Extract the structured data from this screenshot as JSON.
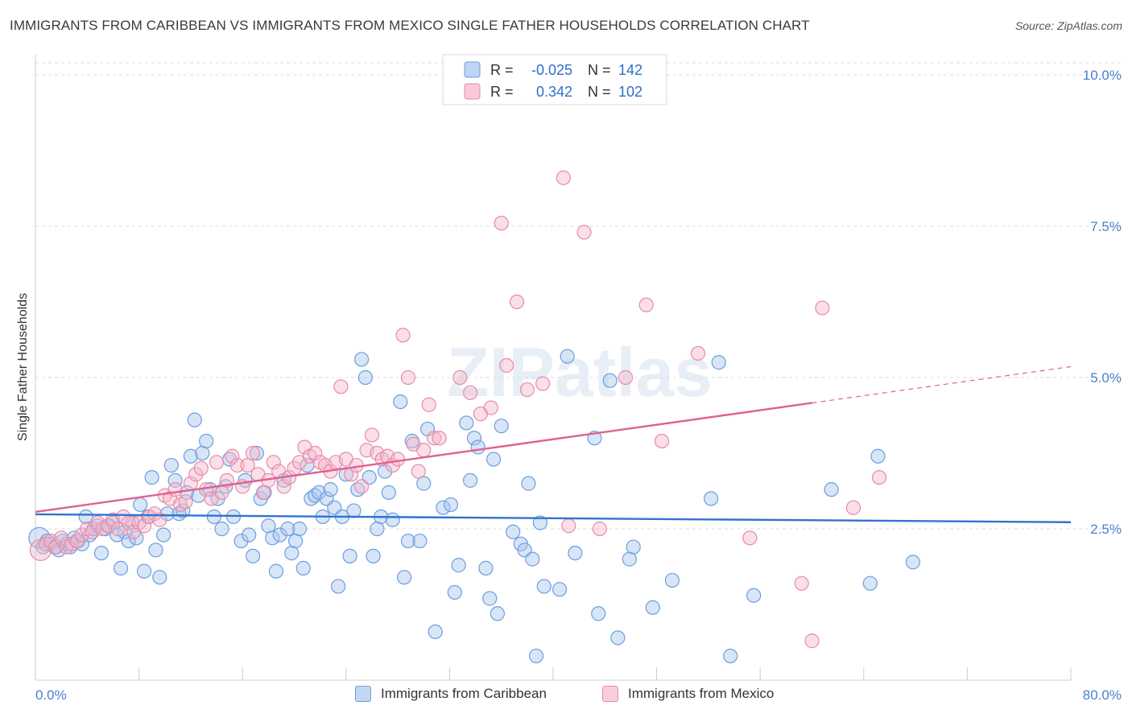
{
  "title": "IMMIGRANTS FROM CARIBBEAN VS IMMIGRANTS FROM MEXICO SINGLE FATHER HOUSEHOLDS CORRELATION CHART",
  "source": "Source: ZipAtlas.com",
  "watermark": "ZIPatlas",
  "colors": {
    "caribbean_fill": "#a9c6ee",
    "caribbean_stroke": "#6b9ee0",
    "caribbean_line": "#2f74d0",
    "mexico_fill": "#f5b8cb",
    "mexico_stroke": "#e88aa8",
    "mexico_line": "#e0628d",
    "tick_label": "#4a7fd0",
    "grid": "#dddddd"
  },
  "legend": {
    "rows": [
      {
        "r_label": "R =",
        "r_value": "-0.025",
        "n_label": "N =",
        "n_value": "142"
      },
      {
        "r_label": "R =",
        "r_value": "0.342",
        "n_label": "N =",
        "n_value": "102"
      }
    ]
  },
  "chart_data": {
    "type": "scatter",
    "title": "IMMIGRANTS FROM CARIBBEAN VS IMMIGRANTS FROM MEXICO SINGLE FATHER HOUSEHOLDS CORRELATION CHART",
    "xlabel": "",
    "ylabel": "Single Father Households",
    "xlim": [
      0,
      80
    ],
    "ylim": [
      0,
      10.2
    ],
    "x_tick_labels": [
      "0.0%",
      "80.0%"
    ],
    "y_ticks": [
      2.5,
      5.0,
      7.5,
      10.0
    ],
    "y_tick_labels": [
      "2.5%",
      "5.0%",
      "7.5%",
      "10.0%"
    ],
    "grid": true,
    "legend_position": "top-center",
    "series": [
      {
        "name": "Immigrants from Caribbean",
        "r": -0.025,
        "n": 142,
        "trend": {
          "x": [
            0,
            80
          ],
          "y": [
            2.74,
            2.61
          ]
        },
        "points": [
          [
            0.3,
            2.35
          ],
          [
            0.6,
            2.2
          ],
          [
            0.9,
            2.3
          ],
          [
            1.2,
            2.25
          ],
          [
            1.5,
            2.2
          ],
          [
            1.8,
            2.15
          ],
          [
            2.1,
            2.3
          ],
          [
            2.4,
            2.25
          ],
          [
            2.7,
            2.2
          ],
          [
            3.0,
            2.35
          ],
          [
            3.3,
            2.3
          ],
          [
            3.6,
            2.25
          ],
          [
            3.9,
            2.7
          ],
          [
            4.2,
            2.4
          ],
          [
            4.5,
            2.5
          ],
          [
            4.8,
            2.55
          ],
          [
            5.1,
            2.1
          ],
          [
            5.4,
            2.5
          ],
          [
            5.7,
            2.55
          ],
          [
            6.0,
            2.6
          ],
          [
            6.3,
            2.4
          ],
          [
            6.6,
            1.85
          ],
          [
            6.9,
            2.45
          ],
          [
            7.2,
            2.3
          ],
          [
            7.5,
            2.6
          ],
          [
            7.8,
            2.35
          ],
          [
            8.1,
            2.9
          ],
          [
            8.4,
            1.8
          ],
          [
            8.7,
            2.7
          ],
          [
            9.0,
            3.35
          ],
          [
            9.3,
            2.15
          ],
          [
            9.6,
            1.7
          ],
          [
            9.9,
            2.4
          ],
          [
            10.2,
            2.75
          ],
          [
            10.5,
            3.55
          ],
          [
            10.8,
            3.3
          ],
          [
            11.1,
            2.75
          ],
          [
            11.4,
            2.8
          ],
          [
            11.7,
            3.1
          ],
          [
            12.0,
            3.7
          ],
          [
            12.3,
            4.3
          ],
          [
            12.6,
            3.05
          ],
          [
            12.9,
            3.75
          ],
          [
            13.2,
            3.95
          ],
          [
            13.5,
            3.15
          ],
          [
            13.8,
            2.7
          ],
          [
            14.1,
            3.0
          ],
          [
            14.4,
            2.5
          ],
          [
            14.7,
            3.2
          ],
          [
            15.0,
            3.65
          ],
          [
            15.3,
            2.7
          ],
          [
            15.9,
            2.3
          ],
          [
            16.2,
            3.3
          ],
          [
            16.5,
            2.4
          ],
          [
            16.8,
            2.05
          ],
          [
            17.1,
            3.75
          ],
          [
            17.4,
            3.0
          ],
          [
            17.7,
            3.1
          ],
          [
            18.0,
            2.55
          ],
          [
            18.3,
            2.35
          ],
          [
            18.6,
            1.8
          ],
          [
            18.9,
            2.4
          ],
          [
            19.2,
            3.3
          ],
          [
            19.5,
            2.5
          ],
          [
            19.8,
            2.1
          ],
          [
            20.1,
            2.3
          ],
          [
            20.4,
            2.5
          ],
          [
            20.7,
            1.85
          ],
          [
            21.0,
            3.55
          ],
          [
            21.3,
            3.0
          ],
          [
            21.6,
            3.05
          ],
          [
            21.9,
            3.1
          ],
          [
            22.2,
            2.7
          ],
          [
            22.5,
            3.0
          ],
          [
            22.8,
            3.15
          ],
          [
            23.1,
            2.85
          ],
          [
            23.4,
            1.55
          ],
          [
            23.7,
            2.7
          ],
          [
            24.0,
            3.4
          ],
          [
            24.3,
            2.05
          ],
          [
            24.6,
            2.8
          ],
          [
            24.9,
            3.15
          ],
          [
            25.2,
            5.3
          ],
          [
            25.5,
            5.0
          ],
          [
            25.8,
            3.35
          ],
          [
            26.1,
            2.05
          ],
          [
            26.4,
            2.5
          ],
          [
            26.7,
            2.7
          ],
          [
            27.0,
            3.45
          ],
          [
            27.3,
            3.1
          ],
          [
            27.6,
            2.65
          ],
          [
            28.2,
            4.6
          ],
          [
            28.5,
            1.7
          ],
          [
            28.8,
            2.3
          ],
          [
            29.1,
            3.95
          ],
          [
            29.7,
            2.3
          ],
          [
            30.0,
            3.25
          ],
          [
            30.3,
            4.15
          ],
          [
            30.9,
            0.8
          ],
          [
            31.5,
            2.85
          ],
          [
            32.1,
            2.9
          ],
          [
            32.4,
            1.45
          ],
          [
            32.7,
            1.9
          ],
          [
            33.3,
            4.25
          ],
          [
            33.6,
            3.3
          ],
          [
            33.9,
            4.0
          ],
          [
            34.2,
            3.85
          ],
          [
            34.8,
            1.85
          ],
          [
            35.1,
            1.35
          ],
          [
            35.4,
            3.65
          ],
          [
            35.7,
            1.1
          ],
          [
            36.0,
            4.2
          ],
          [
            36.9,
            2.45
          ],
          [
            37.5,
            2.25
          ],
          [
            37.8,
            2.15
          ],
          [
            38.1,
            3.25
          ],
          [
            38.4,
            2.0
          ],
          [
            38.7,
            0.4
          ],
          [
            39.0,
            2.6
          ],
          [
            39.3,
            1.55
          ],
          [
            40.5,
            1.5
          ],
          [
            41.1,
            5.35
          ],
          [
            41.7,
            2.1
          ],
          [
            43.2,
            4.0
          ],
          [
            43.5,
            1.1
          ],
          [
            44.4,
            4.95
          ],
          [
            45.0,
            0.7
          ],
          [
            45.9,
            2.0
          ],
          [
            46.2,
            2.2
          ],
          [
            47.7,
            1.2
          ],
          [
            49.2,
            1.65
          ],
          [
            52.2,
            3.0
          ],
          [
            52.8,
            5.25
          ],
          [
            53.7,
            0.4
          ],
          [
            55.5,
            1.4
          ],
          [
            61.5,
            3.15
          ],
          [
            64.5,
            1.6
          ],
          [
            65.1,
            3.7
          ],
          [
            67.8,
            1.95
          ]
        ]
      },
      {
        "name": "Immigrants from Mexico",
        "r": 0.342,
        "n": 102,
        "trend": {
          "x": [
            0,
            60
          ],
          "y": [
            2.78,
            4.58
          ]
        },
        "trend_dashed": {
          "x": [
            60,
            80
          ],
          "y": [
            4.58,
            5.18
          ]
        },
        "points": [
          [
            0.4,
            2.15
          ],
          [
            0.8,
            2.25
          ],
          [
            1.2,
            2.3
          ],
          [
            1.6,
            2.2
          ],
          [
            2.0,
            2.35
          ],
          [
            2.4,
            2.2
          ],
          [
            2.8,
            2.25
          ],
          [
            3.2,
            2.3
          ],
          [
            3.6,
            2.4
          ],
          [
            4.0,
            2.5
          ],
          [
            4.4,
            2.45
          ],
          [
            4.8,
            2.6
          ],
          [
            5.2,
            2.5
          ],
          [
            5.6,
            2.55
          ],
          [
            6.0,
            2.65
          ],
          [
            6.4,
            2.5
          ],
          [
            6.8,
            2.7
          ],
          [
            7.2,
            2.6
          ],
          [
            7.6,
            2.45
          ],
          [
            8.0,
            2.6
          ],
          [
            8.4,
            2.55
          ],
          [
            8.8,
            2.7
          ],
          [
            9.2,
            2.75
          ],
          [
            9.6,
            2.65
          ],
          [
            10.0,
            3.05
          ],
          [
            10.4,
            3.0
          ],
          [
            10.8,
            3.15
          ],
          [
            11.2,
            2.9
          ],
          [
            11.6,
            2.95
          ],
          [
            12.0,
            3.25
          ],
          [
            12.4,
            3.4
          ],
          [
            12.8,
            3.5
          ],
          [
            13.2,
            3.15
          ],
          [
            13.6,
            3.0
          ],
          [
            14.0,
            3.6
          ],
          [
            14.4,
            3.1
          ],
          [
            14.8,
            3.3
          ],
          [
            15.2,
            3.7
          ],
          [
            15.6,
            3.55
          ],
          [
            16.0,
            3.2
          ],
          [
            16.4,
            3.55
          ],
          [
            16.8,
            3.75
          ],
          [
            17.2,
            3.4
          ],
          [
            17.6,
            3.1
          ],
          [
            18.0,
            3.3
          ],
          [
            18.4,
            3.6
          ],
          [
            18.8,
            3.45
          ],
          [
            19.2,
            3.2
          ],
          [
            19.6,
            3.35
          ],
          [
            20.0,
            3.5
          ],
          [
            20.4,
            3.6
          ],
          [
            20.8,
            3.85
          ],
          [
            21.2,
            3.7
          ],
          [
            21.6,
            3.75
          ],
          [
            22.0,
            3.6
          ],
          [
            22.4,
            3.55
          ],
          [
            22.8,
            3.45
          ],
          [
            23.2,
            3.6
          ],
          [
            23.6,
            4.85
          ],
          [
            24.0,
            3.65
          ],
          [
            24.4,
            3.4
          ],
          [
            24.8,
            3.55
          ],
          [
            25.2,
            3.2
          ],
          [
            25.6,
            3.8
          ],
          [
            26.0,
            4.05
          ],
          [
            26.4,
            3.75
          ],
          [
            26.8,
            3.65
          ],
          [
            27.2,
            3.7
          ],
          [
            27.6,
            3.55
          ],
          [
            28.0,
            3.65
          ],
          [
            28.4,
            5.7
          ],
          [
            28.8,
            5.0
          ],
          [
            29.2,
            3.9
          ],
          [
            29.6,
            3.45
          ],
          [
            30.0,
            3.8
          ],
          [
            30.4,
            4.55
          ],
          [
            30.8,
            4.0
          ],
          [
            31.2,
            4.0
          ],
          [
            32.8,
            5.0
          ],
          [
            33.6,
            4.75
          ],
          [
            34.4,
            4.4
          ],
          [
            35.2,
            4.5
          ],
          [
            36.0,
            7.55
          ],
          [
            36.4,
            5.2
          ],
          [
            37.2,
            6.25
          ],
          [
            38.0,
            4.8
          ],
          [
            39.2,
            4.9
          ],
          [
            40.8,
            8.3
          ],
          [
            41.2,
            2.55
          ],
          [
            42.4,
            7.4
          ],
          [
            43.6,
            2.5
          ],
          [
            45.6,
            5.0
          ],
          [
            47.2,
            6.2
          ],
          [
            48.4,
            3.95
          ],
          [
            51.2,
            5.4
          ],
          [
            55.2,
            2.35
          ],
          [
            59.2,
            1.6
          ],
          [
            60.0,
            0.65
          ],
          [
            60.8,
            6.15
          ],
          [
            63.2,
            2.85
          ],
          [
            65.2,
            3.35
          ]
        ]
      }
    ]
  },
  "bottom_legend": {
    "caribbean_label": "Immigrants from Caribbean",
    "mexico_label": "Immigrants from Mexico"
  }
}
